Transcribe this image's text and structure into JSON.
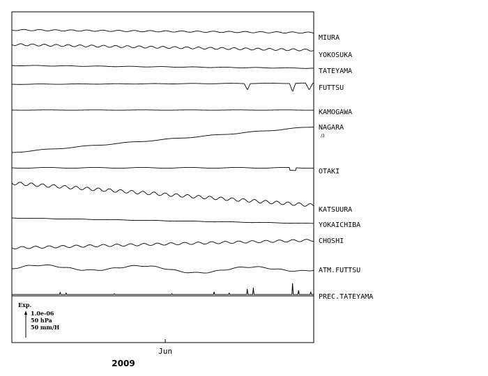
{
  "chart_data": {
    "type": "line",
    "x_unit": "month",
    "x_range": [
      "2009-05-01",
      "2009-07-01"
    ],
    "x_ticks": [
      {
        "date": "2009-05-01",
        "label": ""
      },
      {
        "date": "2009-06-01",
        "label": "Jun"
      },
      {
        "date": "2009-07-01",
        "label": ""
      }
    ],
    "x_year_label": "2009",
    "series": [
      {
        "name": "MIURA"
      },
      {
        "name": "YOKOSUKA"
      },
      {
        "name": "TATEYAMA"
      },
      {
        "name": "FUTTSU"
      },
      {
        "name": "KAMOGAWA"
      },
      {
        "name": "NAGARA",
        "note": "/3"
      },
      {
        "name": "OTAKI"
      },
      {
        "name": "KATSUURA"
      },
      {
        "name": "YOKAICHIBA"
      },
      {
        "name": "CHOSHI"
      },
      {
        "name": "ATM.FUTTSU"
      },
      {
        "name": "PREC.TATEYAMA"
      }
    ],
    "scale_legend": {
      "title": "Exp.",
      "lines": [
        "1.0e-06",
        "50 hPa",
        "50 mm/H"
      ]
    },
    "grid": false
  }
}
